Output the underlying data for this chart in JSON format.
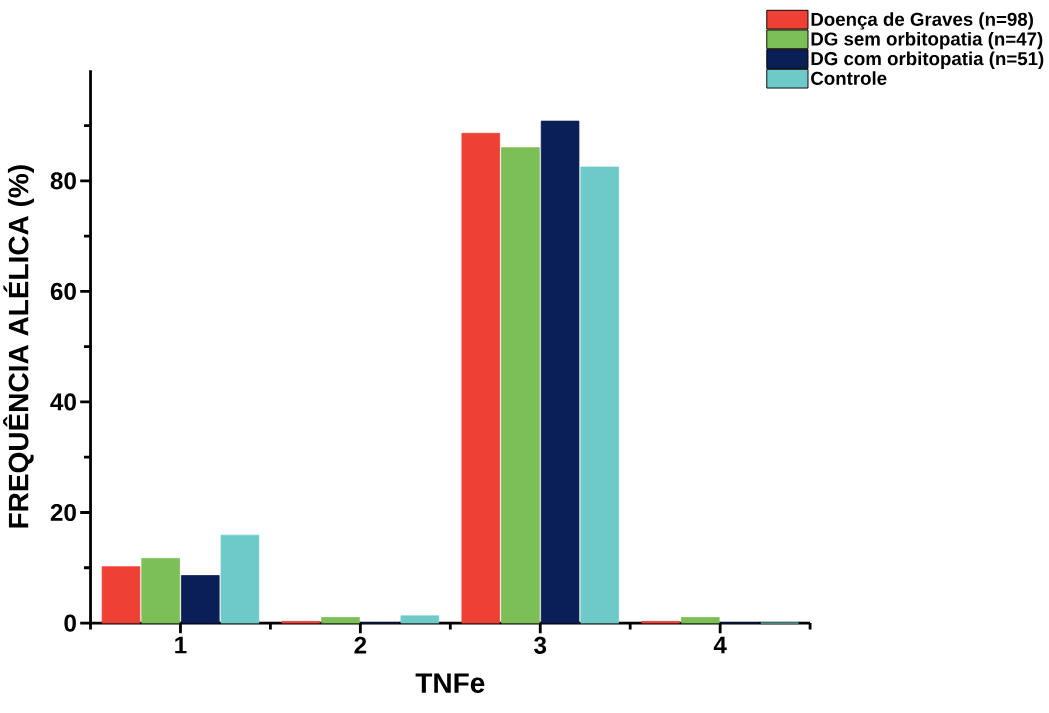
{
  "chart_data": {
    "type": "bar",
    "xlabel": "TNFe",
    "ylabel": "FREQUÊNCIA ALÉLICA (%)",
    "categories": [
      "1",
      "2",
      "3",
      "4"
    ],
    "series": [
      {
        "name": "Doença de Graves (n=98)",
        "color": "#ee4035",
        "values": [
          10.2,
          0.3,
          88.6,
          0.3
        ]
      },
      {
        "name": "DG sem orbitopatia (n=47)",
        "color": "#7cbf56",
        "values": [
          11.7,
          1.0,
          86.0,
          1.0
        ]
      },
      {
        "name": "DG com orbitopatia (n=51)",
        "color": "#0a1f55",
        "values": [
          8.6,
          0,
          90.8,
          0
        ]
      },
      {
        "name": "Controle",
        "color": "#6ecac8",
        "values": [
          15.9,
          1.3,
          82.5,
          0
        ]
      }
    ],
    "ylim": [
      0,
      100
    ],
    "yticks": [
      0,
      {
        "value": 10,
        "label": null
      },
      20,
      {
        "value": 30,
        "label": null
      },
      40,
      {
        "value": 50,
        "label": null
      },
      60,
      {
        "value": 70,
        "label": null
      },
      80,
      {
        "value": 90,
        "label": null
      }
    ],
    "legend": "top right"
  }
}
